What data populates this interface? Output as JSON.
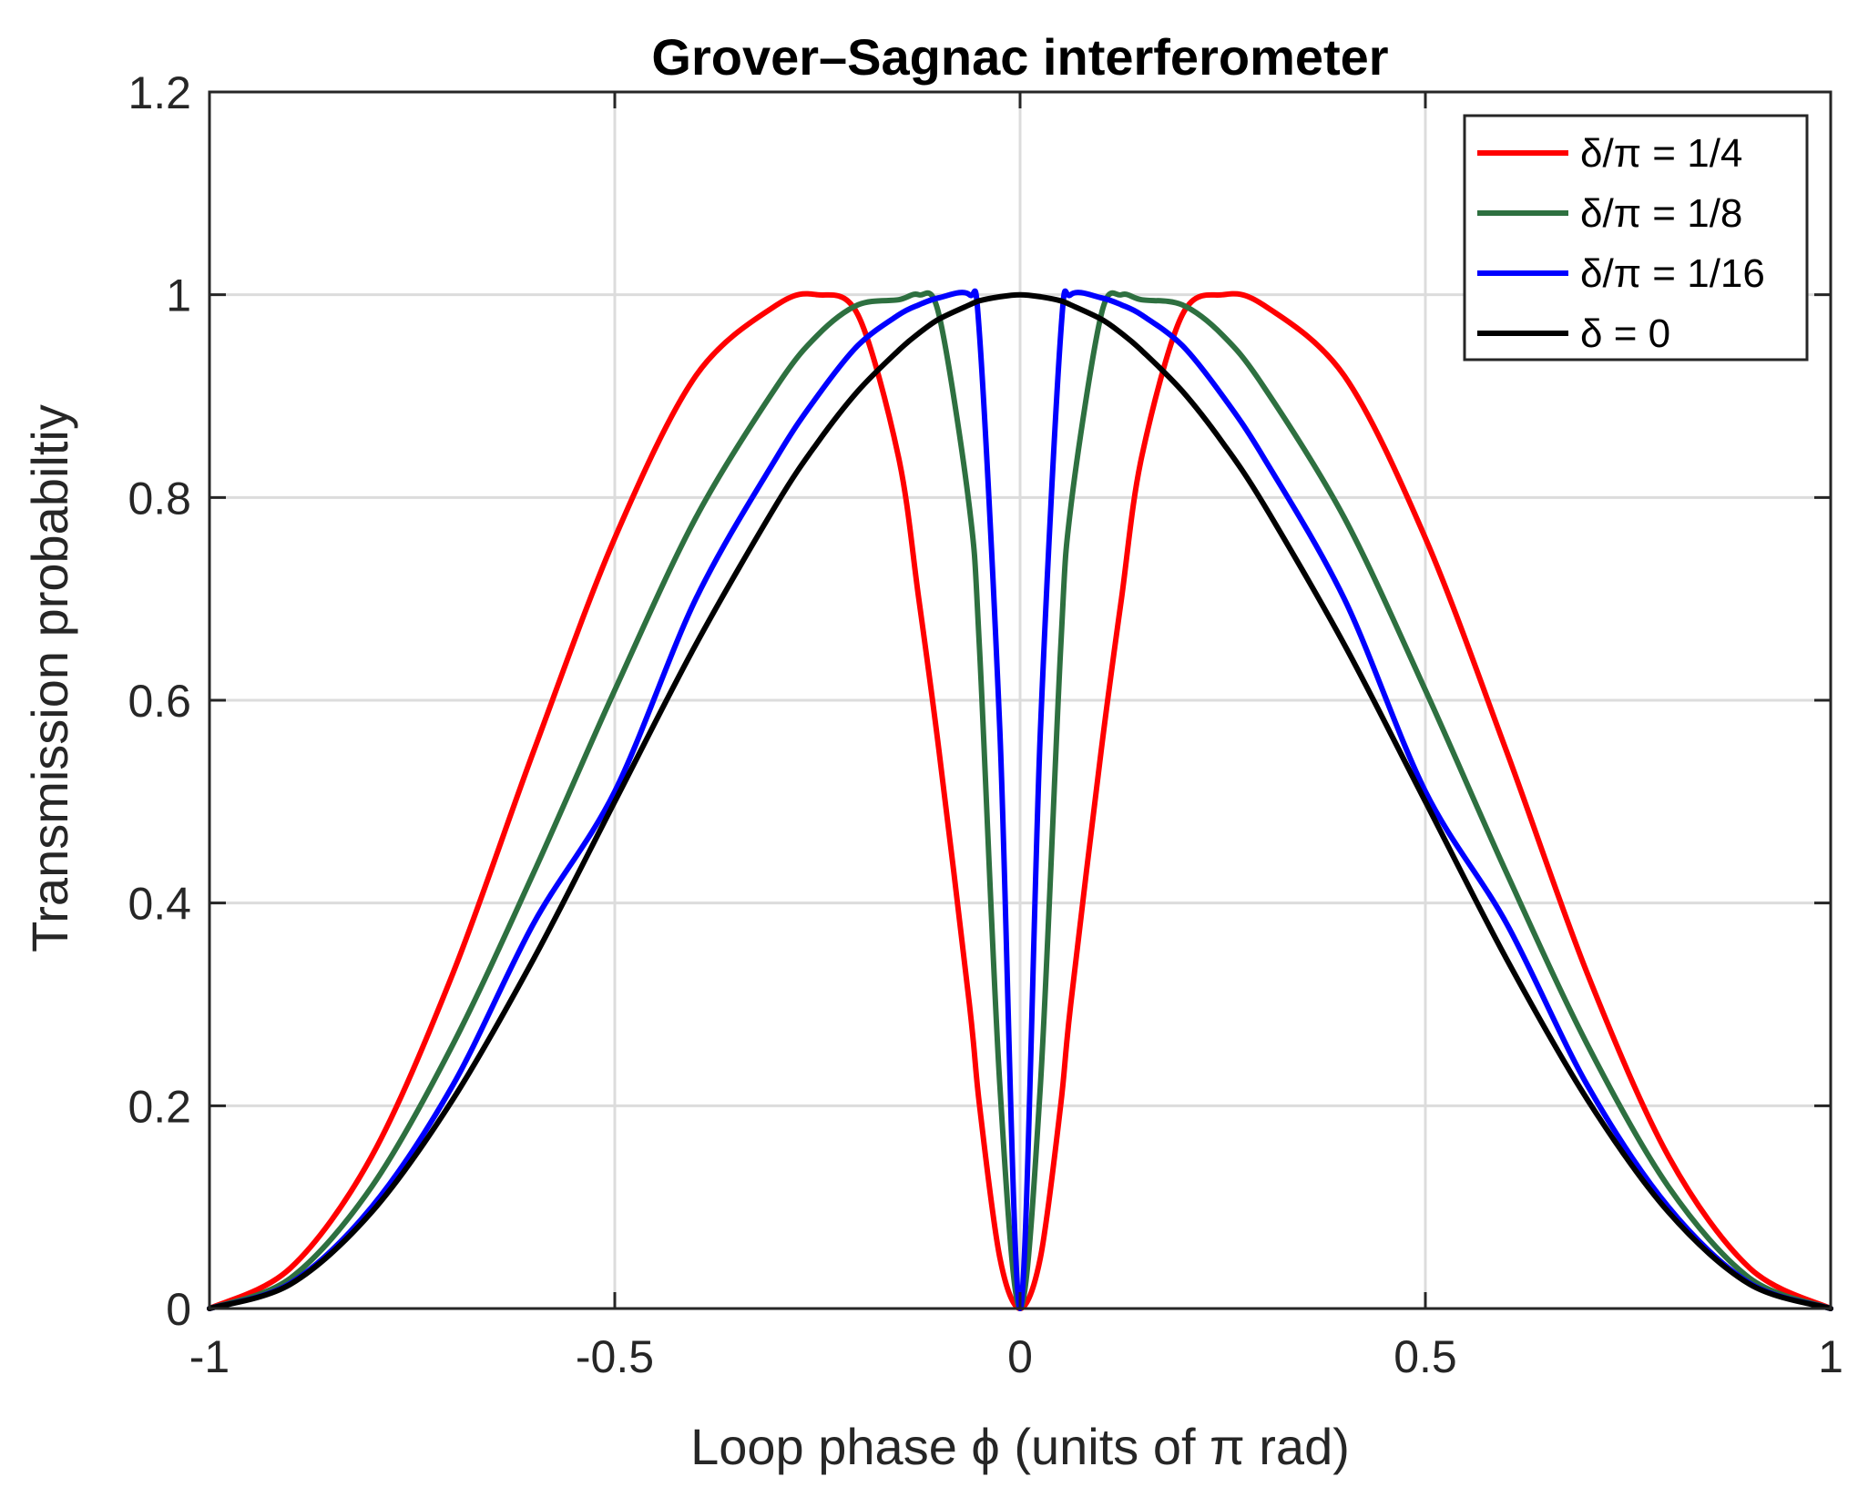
{
  "chart_data": {
    "type": "line",
    "title": "Grover–Sagnac interferometer",
    "xlabel": "Loop phase ϕ (units of π rad)",
    "ylabel": "Transmission probabiltiy",
    "xlim": [
      -1,
      1
    ],
    "ylim": [
      0,
      1.2
    ],
    "xticks": [
      -1,
      -0.5,
      0,
      0.5,
      1
    ],
    "xtick_labels": [
      "-1",
      "-0.5",
      "0",
      "0.5",
      "1"
    ],
    "yticks": [
      0,
      0.2,
      0.4,
      0.6,
      0.8,
      1,
      1.2
    ],
    "ytick_labels": [
      "0",
      "0.2",
      "0.4",
      "0.6",
      "0.8",
      "1",
      "1.2"
    ],
    "grid": true,
    "legend_position": "top-right",
    "x": [
      -1,
      -0.9,
      -0.8,
      -0.7,
      -0.6,
      -0.5,
      -0.4,
      -0.3,
      -0.25,
      -0.2,
      -0.15,
      -0.125,
      -0.1,
      -0.0625,
      -0.05,
      -0.025,
      0,
      0.025,
      0.05,
      0.0625,
      0.1,
      0.125,
      0.15,
      0.2,
      0.25,
      0.3,
      0.4,
      0.5,
      0.6,
      0.7,
      0.8,
      0.9,
      1
    ],
    "series": [
      {
        "name": "δ/π = 1/4",
        "color": "#ff0000",
        "values": [
          0,
          0.04,
          0.15,
          0.33,
          0.55,
          0.76,
          0.92,
          0.99,
          1,
          0.98,
          0.84,
          0.7,
          0.55,
          0.3,
          0.2,
          0.05,
          0,
          0.05,
          0.2,
          0.3,
          0.55,
          0.7,
          0.84,
          0.98,
          1,
          0.99,
          0.92,
          0.76,
          0.55,
          0.33,
          0.15,
          0.04,
          0
        ]
      },
      {
        "name": "δ/π = 1/8",
        "color": "#2e7040",
        "values": [
          0,
          0.03,
          0.12,
          0.26,
          0.43,
          0.61,
          0.78,
          0.91,
          0.96,
          0.99,
          0.995,
          1,
          0.98,
          0.79,
          0.65,
          0.22,
          0,
          0.22,
          0.65,
          0.79,
          0.98,
          1,
          0.995,
          0.99,
          0.96,
          0.91,
          0.78,
          0.61,
          0.43,
          0.26,
          0.12,
          0.03,
          0
        ]
      },
      {
        "name": "δ/π = 1/16",
        "color": "#0000ff",
        "values": [
          0,
          0.025,
          0.1,
          0.22,
          0.38,
          0.51,
          0.7,
          0.84,
          0.9,
          0.95,
          0.98,
          0.99,
          0.997,
          1,
          0.96,
          0.57,
          0,
          0.57,
          0.96,
          1,
          0.997,
          0.99,
          0.98,
          0.95,
          0.9,
          0.84,
          0.7,
          0.51,
          0.38,
          0.22,
          0.1,
          0.025,
          0
        ]
      },
      {
        "name": "δ = 0",
        "color": "#000000",
        "values": [
          0,
          0.024,
          0.095,
          0.206,
          0.345,
          0.5,
          0.655,
          0.794,
          0.854,
          0.905,
          0.945,
          0.962,
          0.976,
          0.99,
          0.994,
          0.998,
          1,
          0.998,
          0.994,
          0.99,
          0.976,
          0.962,
          0.945,
          0.905,
          0.854,
          0.794,
          0.655,
          0.5,
          0.345,
          0.206,
          0.095,
          0.024,
          0
        ]
      }
    ]
  }
}
